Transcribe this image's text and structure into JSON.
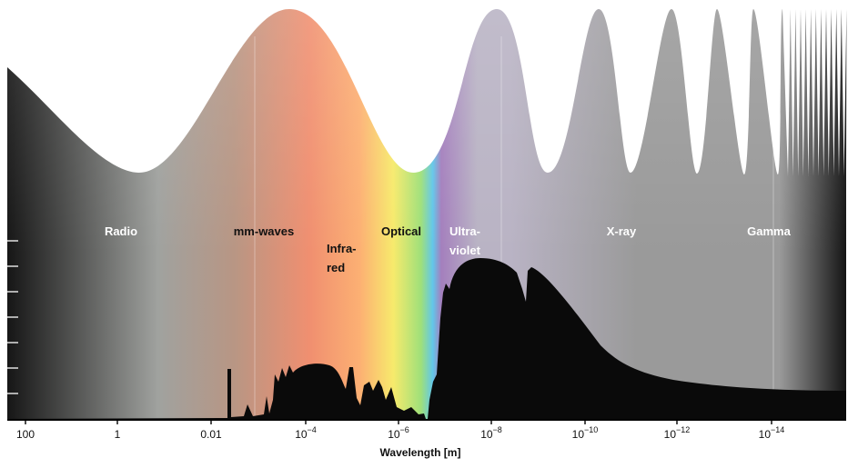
{
  "spectrum": {
    "bands": [
      {
        "key": "radio",
        "label": "Radio",
        "color": "#ffffff"
      },
      {
        "key": "mm-waves",
        "label": "mm-waves",
        "color": "#111111"
      },
      {
        "key": "infrared",
        "lines": [
          "Infra-",
          "red"
        ],
        "color": "#111111"
      },
      {
        "key": "optical",
        "label": "Optical",
        "color": "#111111"
      },
      {
        "key": "ultraviolet",
        "lines": [
          "Ultra-",
          "violet"
        ],
        "color": "#ffffff"
      },
      {
        "key": "x-ray",
        "label": "X-ray",
        "color": "#ffffff"
      },
      {
        "key": "gamma",
        "label": "Gamma",
        "color": "#ffffff"
      }
    ],
    "axis": {
      "title": "Wavelength [m]",
      "ticks": [
        {
          "base": "100",
          "exp": ""
        },
        {
          "base": "1",
          "exp": ""
        },
        {
          "base": "0.01",
          "exp": ""
        },
        {
          "base": "10",
          "exp": "−4"
        },
        {
          "base": "10",
          "exp": "−6"
        },
        {
          "base": "10",
          "exp": "−8"
        },
        {
          "base": "10",
          "exp": "−10"
        },
        {
          "base": "10",
          "exp": "−12"
        },
        {
          "base": "10",
          "exp": "−14"
        }
      ]
    },
    "colors": {
      "radio_dark": "#161616",
      "radio_gray": "#a0a29f",
      "mm_wave": "#b89684",
      "infrared": "#f08f70",
      "orange": "#fcb073",
      "yellow": "#f7ea6c",
      "green": "#9fe07a",
      "cyan": "#62c7ea",
      "violet": "#a47fbd",
      "lavender": "#b9b3c4",
      "xray_gray": "#9a9a9a",
      "gamma_dark": "#141414",
      "opacity_curve": "#0a0a0a"
    }
  }
}
